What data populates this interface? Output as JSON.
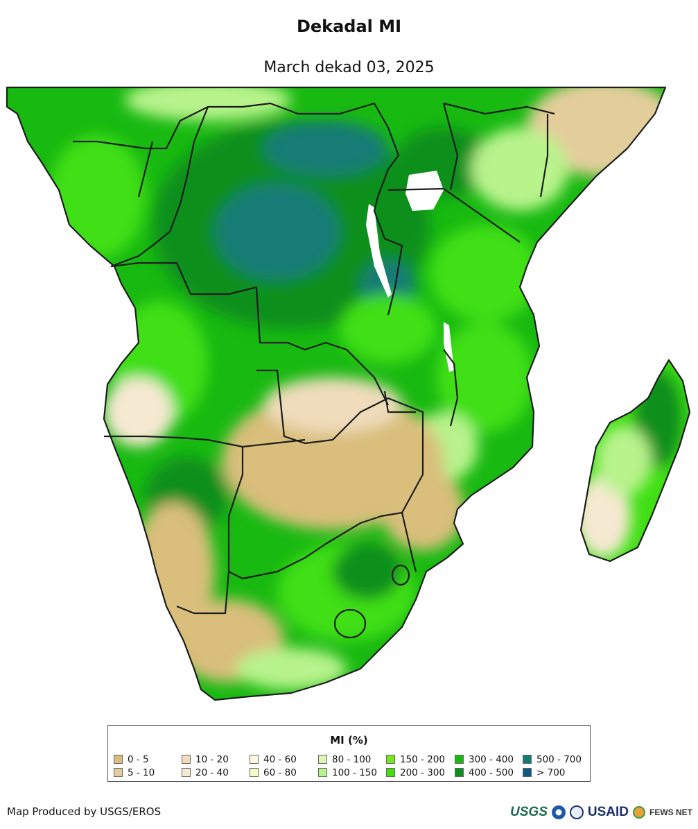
{
  "title": "Dekadal MI",
  "subtitle": "March dekad 03, 2025",
  "legend": {
    "title": "MI (%)",
    "items": [
      {
        "label": "0 - 5",
        "color": "#d9be7c"
      },
      {
        "label": "5 - 10",
        "color": "#e3cd9b"
      },
      {
        "label": "10 - 20",
        "color": "#efdcbb"
      },
      {
        "label": "20 - 40",
        "color": "#f6e9d2"
      },
      {
        "label": "40 - 60",
        "color": "#fbf8de"
      },
      {
        "label": "60 - 80",
        "color": "#f4fbc6"
      },
      {
        "label": "80 - 100",
        "color": "#ddf8b6"
      },
      {
        "label": "100 - 150",
        "color": "#b8f38c"
      },
      {
        "label": "150 - 200",
        "color": "#74e81d"
      },
      {
        "label": "200 - 300",
        "color": "#3fdf13"
      },
      {
        "label": "300 - 400",
        "color": "#18b911"
      },
      {
        "label": "400 - 500",
        "color": "#0c8f1f"
      },
      {
        "label": "500 - 700",
        "color": "#127b74"
      },
      {
        "label": "> 700",
        "color": "#0e5a7f"
      }
    ]
  },
  "credit": "Map Produced by USGS/EROS",
  "logos": {
    "usgs": "USGS",
    "usaid": "USAID",
    "fews": "FEWS NET",
    "noaa_color": "#1c5aa6",
    "usgs_color": "#1a6b4f"
  },
  "map_colors": {
    "ocean": "#ffffff",
    "dry_deep": "#d9be7c",
    "dry": "#e3cd9b",
    "pale": "#f6e9d2",
    "light_green": "#b8f38c",
    "bright_green": "#3fdf13",
    "green": "#18b911",
    "dark_green": "#0c8f1f",
    "teal": "#127b74",
    "border": "#1c1c1c"
  }
}
